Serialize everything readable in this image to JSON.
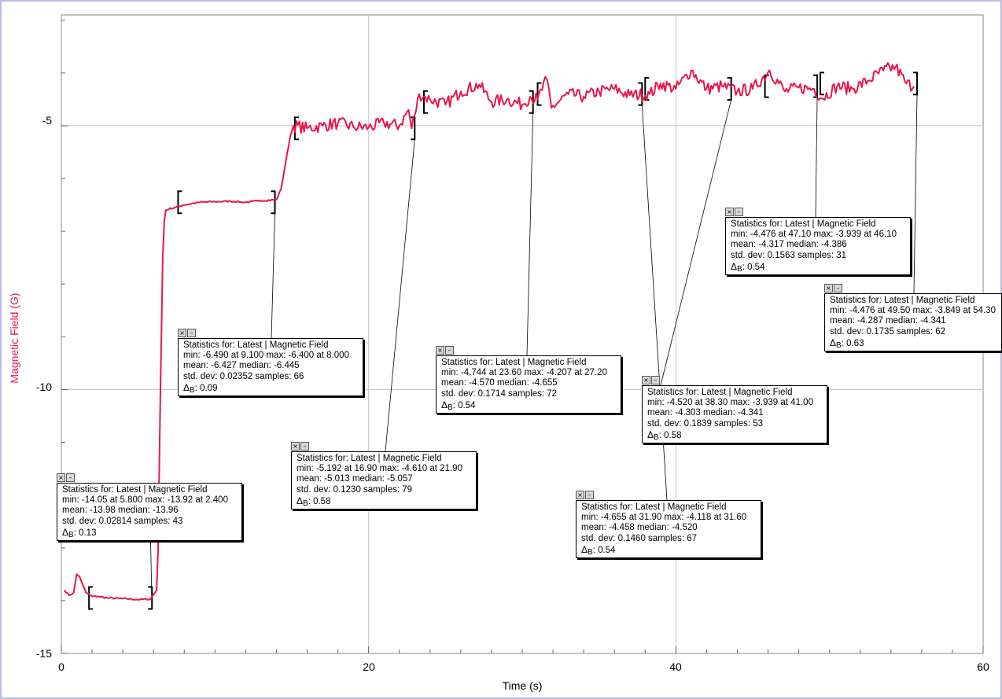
{
  "chart_data": {
    "type": "line",
    "xlabel": "Time (s)",
    "ylabel": "Magnetic Field (G)",
    "xlim": [
      0,
      60
    ],
    "ylim": [
      -15,
      -2.9
    ],
    "x_ticks": [
      "0",
      "20",
      "40",
      "60"
    ],
    "y_ticks": [
      "-5",
      "-10",
      "-15"
    ],
    "x_minor_step": 2,
    "y_minor_step": 1,
    "grid": true,
    "line_color": "#e8174a",
    "series": [
      {
        "name": "Latest",
        "x": [
          0.2,
          0.5,
          0.8,
          1.0,
          1.2,
          1.4,
          1.6,
          2.0,
          2.4,
          3.0,
          4.0,
          5.0,
          5.8,
          6.2,
          6.3,
          6.45,
          6.6,
          6.7,
          6.8,
          7.0,
          8.0,
          9.0,
          10.0,
          11.0,
          12.0,
          13.0,
          14.0,
          14.3,
          14.6,
          14.9,
          15.1,
          16.0,
          17.0,
          18.0,
          19.0,
          20.0,
          21.0,
          22.0,
          22.6,
          22.8,
          23.0,
          23.3,
          23.6,
          24.0,
          25.0,
          26.0,
          27.2,
          28.0,
          29.0,
          30.0,
          30.5,
          31.0,
          31.6,
          31.9,
          33.0,
          34.0,
          35.0,
          36.0,
          37.0,
          38.3,
          39.0,
          40.0,
          41.0,
          42.0,
          43.0,
          44.0,
          45.0,
          46.1,
          47.1,
          48.0,
          49.0,
          49.5,
          50.5,
          51.5,
          52.5,
          53.5,
          54.3,
          55.0,
          55.5
        ],
        "y": [
          -13.8,
          -13.9,
          -13.85,
          -13.5,
          -13.55,
          -13.7,
          -13.85,
          -13.92,
          -13.92,
          -13.95,
          -13.96,
          -13.98,
          -13.97,
          -13.8,
          -13.0,
          -10.0,
          -7.5,
          -6.8,
          -6.6,
          -6.58,
          -6.5,
          -6.45,
          -6.44,
          -6.43,
          -6.45,
          -6.42,
          -6.4,
          -6.2,
          -5.7,
          -5.2,
          -5.0,
          -5.05,
          -5.0,
          -4.95,
          -5.02,
          -5.03,
          -4.95,
          -5.0,
          -4.7,
          -5.05,
          -4.8,
          -4.4,
          -4.45,
          -4.5,
          -4.6,
          -4.35,
          -4.22,
          -4.55,
          -4.5,
          -4.6,
          -4.45,
          -4.5,
          -4.12,
          -4.66,
          -4.4,
          -4.45,
          -4.35,
          -4.3,
          -4.42,
          -4.4,
          -4.2,
          -4.3,
          -3.95,
          -4.3,
          -4.25,
          -4.35,
          -4.3,
          -3.95,
          -4.35,
          -4.28,
          -4.3,
          -4.48,
          -4.25,
          -4.3,
          -4.15,
          -3.95,
          -3.88,
          -4.2,
          -4.25
        ]
      }
    ],
    "statistics": [
      {
        "header": "Statistics for: Latest | Magnetic Field",
        "minmax": "min: -14.05 at 5.800 max: -13.92 at 2.400",
        "meanmed": "mean: -13.98 median: -13.96",
        "stdsamp": "std. dev: 0.02814 samples: 43",
        "delta_label": "Δ",
        "delta_sub": "B",
        "delta_val": ": 0.13",
        "range": [
          1.8,
          5.9
        ],
        "yval": -13.95
      },
      {
        "header": "Statistics for: Latest | Magnetic Field",
        "minmax": "min: -6.490 at 9.100 max: -6.400 at 8.000",
        "meanmed": "mean: -6.427 median: -6.445",
        "stdsamp": "std. dev: 0.02352 samples: 66",
        "delta_label": "Δ",
        "delta_sub": "B",
        "delta_val": ": 0.09",
        "range": [
          7.6,
          13.9
        ],
        "yval": -6.45
      },
      {
        "header": "Statistics for: Latest | Magnetic Field",
        "minmax": "min: -5.192 at 16.90 max: -4.610 at 21.90",
        "meanmed": "mean: -5.013 median: -5.057",
        "stdsamp": "std. dev: 0.1230 samples: 79",
        "delta_label": "Δ",
        "delta_sub": "B",
        "delta_val": ": 0.58",
        "range": [
          15.2,
          23.0
        ],
        "yval": -5.05
      },
      {
        "header": "Statistics for: Latest | Magnetic Field",
        "minmax": "min: -4.744 at 23.60 max: -4.207 at 27.20",
        "meanmed": "mean: -4.570 median: -4.655",
        "stdsamp": "std. dev: 0.1714 samples: 72",
        "delta_label": "Δ",
        "delta_sub": "B",
        "delta_val": ": 0.54",
        "range": [
          23.6,
          30.7
        ],
        "yval": -4.55
      },
      {
        "header": "Statistics for: Latest | Magnetic Field",
        "minmax": "min: -4.655 at 31.90 max: -4.118 at 31.60",
        "meanmed": "mean: -4.458 median: -4.520",
        "stdsamp": "std. dev: 0.1460 samples: 67",
        "delta_label": "Δ",
        "delta_sub": "B",
        "delta_val": ": 0.54",
        "range": [
          31.0,
          37.8
        ],
        "yval": -4.4
      },
      {
        "header": "Statistics for: Latest | Magnetic Field",
        "minmax": "min: -4.520 at 38.30 max: -3.939 at 41.00",
        "meanmed": "mean: -4.303 median: -4.341",
        "stdsamp": "std. dev: 0.1839 samples: 53",
        "delta_label": "Δ",
        "delta_sub": "B",
        "delta_val": ": 0.58",
        "range": [
          38.0,
          43.6
        ],
        "yval": -4.3
      },
      {
        "header": "Statistics for: Latest | Magnetic Field",
        "minmax": "min: -4.476 at 47.10 max: -3.939 at 46.10",
        "meanmed": "mean: -4.317 median: -4.386",
        "stdsamp": "std. dev: 0.1563 samples: 31",
        "delta_label": "Δ",
        "delta_sub": "B",
        "delta_val": ": 0.54",
        "range": [
          45.8,
          49.2
        ],
        "yval": -4.25
      },
      {
        "header": "Statistics for: Latest | Magnetic Field",
        "minmax": "min: -4.476 at 49.50 max: -3.849 at 54.30",
        "meanmed": "mean: -4.287 median: -4.341",
        "stdsamp": "std. dev: 0.1735 samples: 62",
        "delta_label": "Δ",
        "delta_sub": "B",
        "delta_val": ": 0.63",
        "range": [
          49.4,
          55.7
        ],
        "yval": -4.2
      }
    ]
  }
}
